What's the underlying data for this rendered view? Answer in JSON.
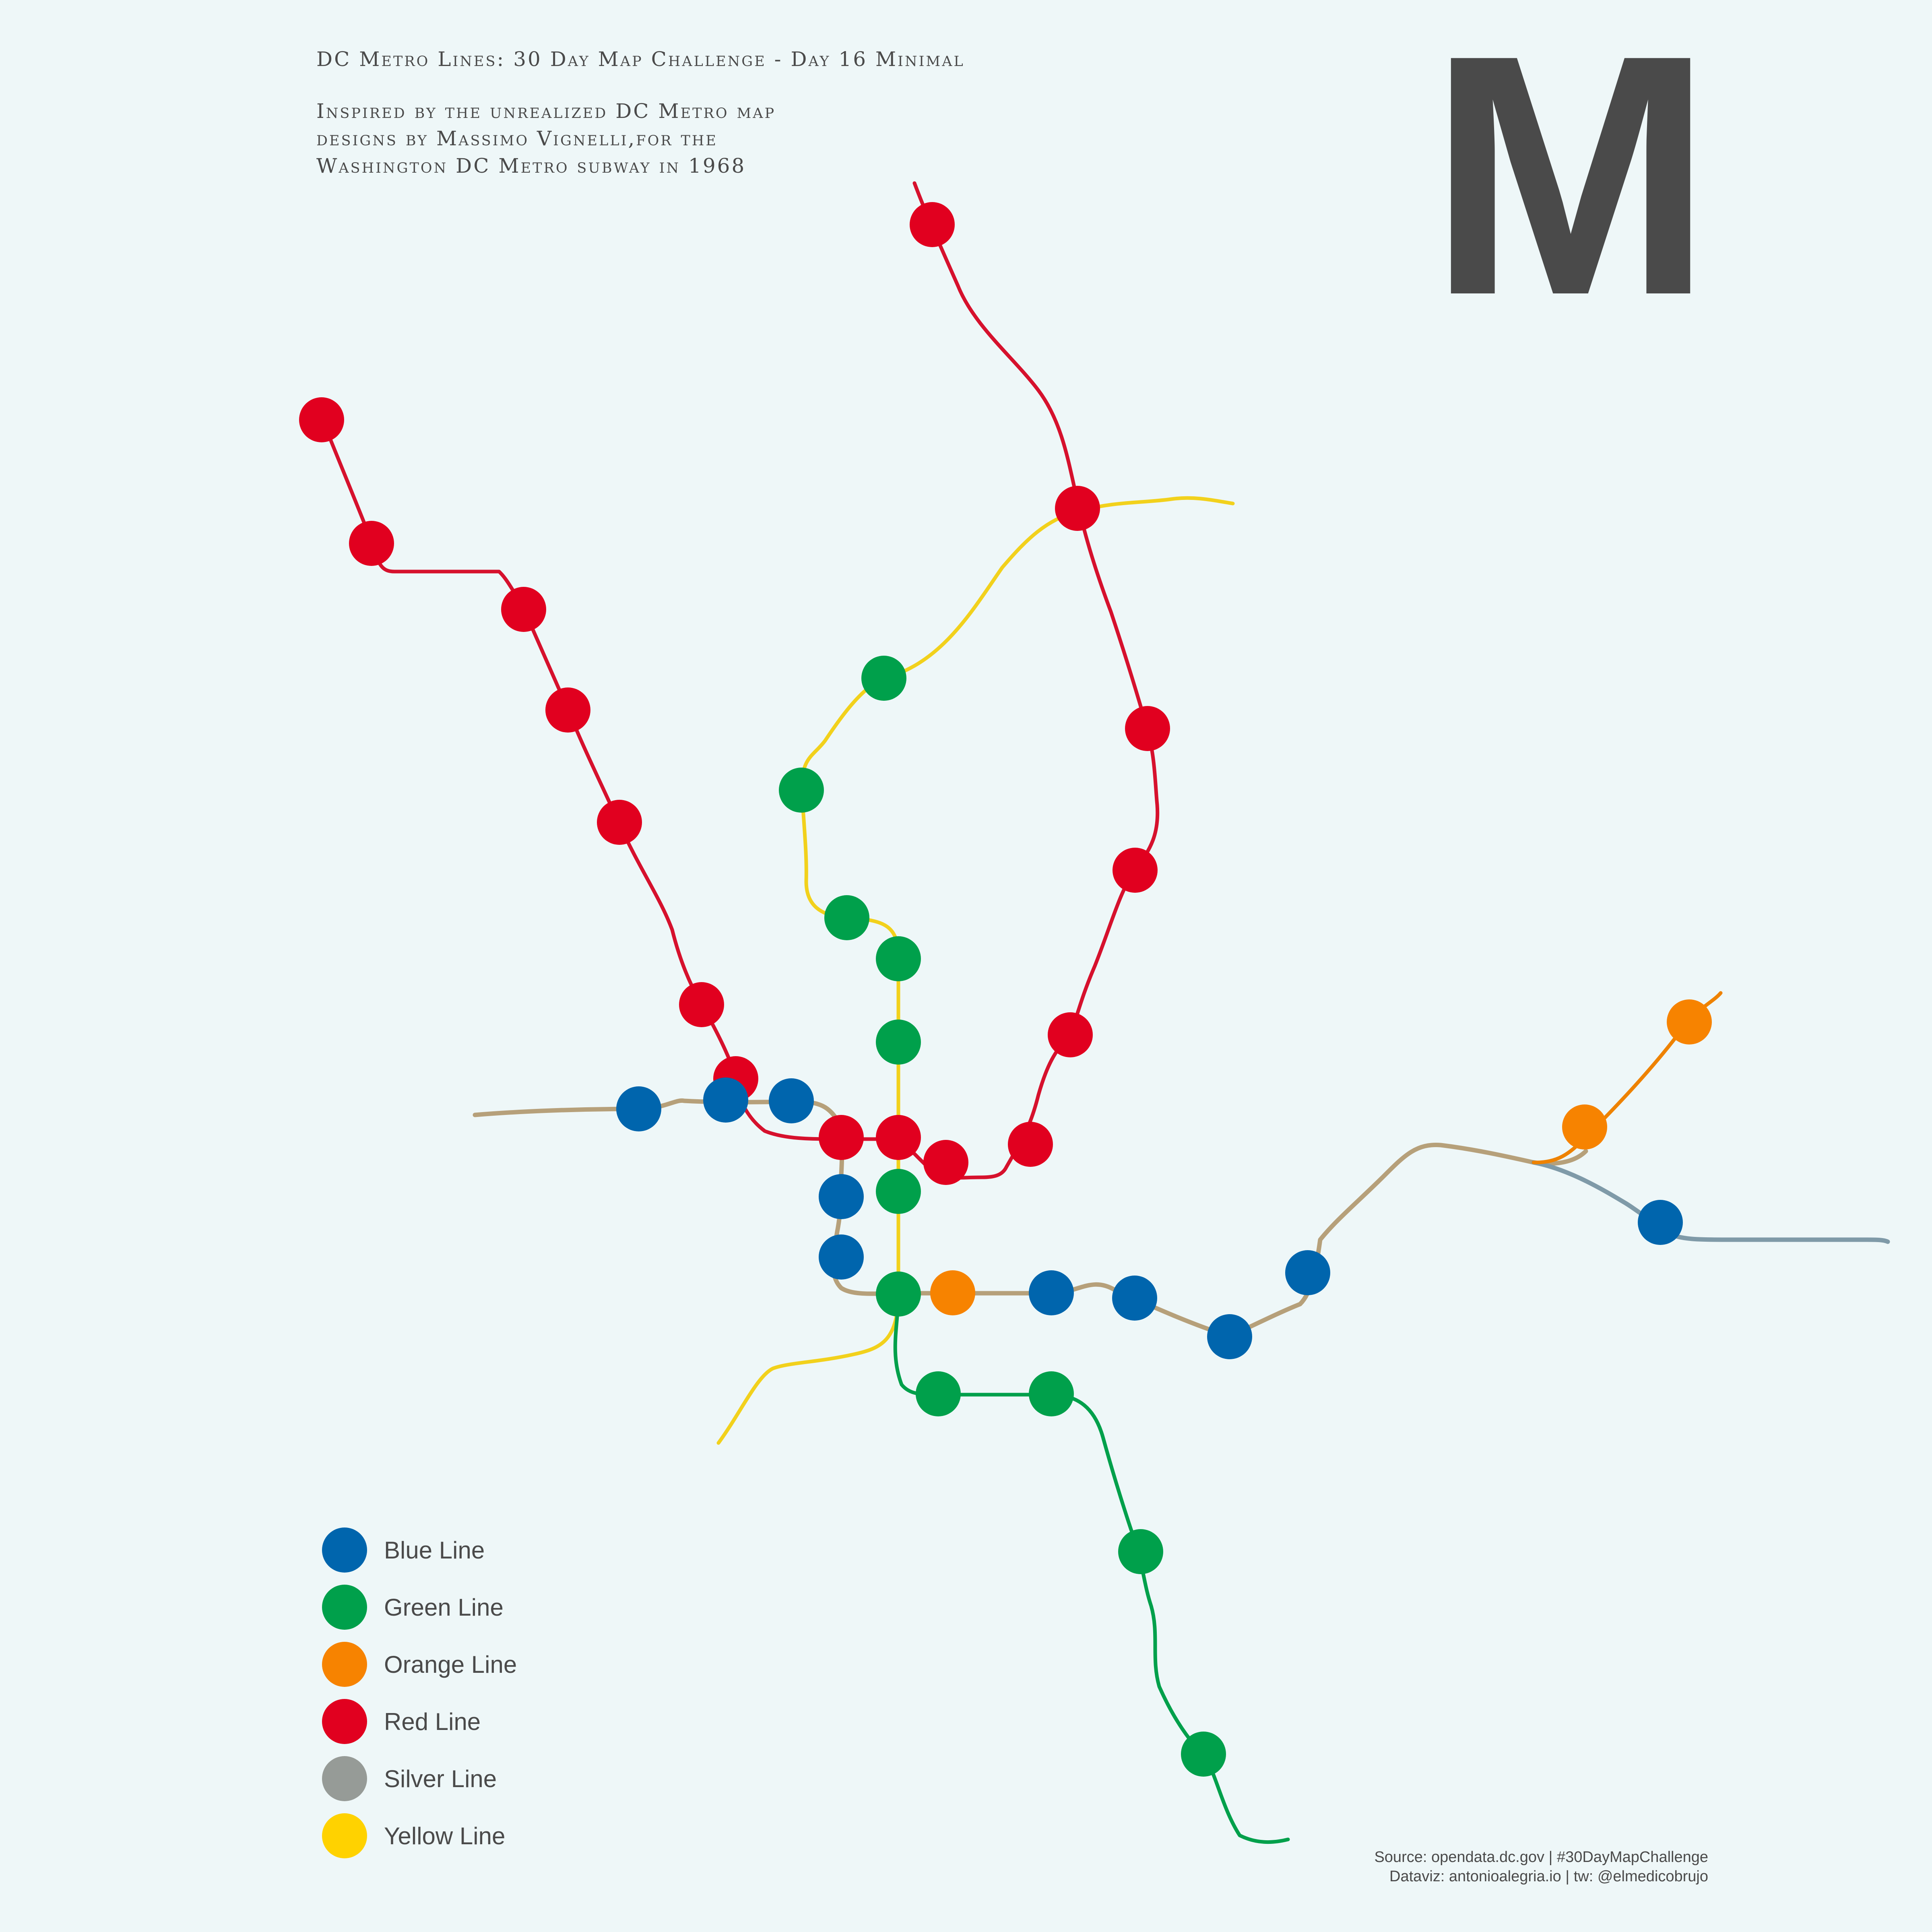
{
  "title": "DC Metro Lines: 30 Day Map Challenge - Day 16 Minimal",
  "subtitle_lines": [
    "Inspired by the unrealized DC Metro map",
    "designs by Massimo Vignelli,for the",
    "Washington DC Metro subway in 1968"
  ],
  "logo": "M",
  "legend": [
    {
      "label": "Blue Line",
      "color": "#0065ad"
    },
    {
      "label": "Green Line",
      "color": "#00a04b"
    },
    {
      "label": "Orange Line",
      "color": "#f78300"
    },
    {
      "label": "Red Line",
      "color": "#e1001f"
    },
    {
      "label": "Silver Line",
      "color": "#969b97"
    },
    {
      "label": "Yellow Line",
      "color": "#ffd200"
    }
  ],
  "credits": {
    "source": "Source: opendata.dc.gov | #30DayMapChallenge",
    "dataviz": "Dataviz: antonioalegria.io | tw: @elmedicobrujo"
  },
  "colors": {
    "background": "#eef7f8",
    "text": "#4a4a4a",
    "red": "#e1001f",
    "blue": "#0065ad",
    "green": "#00a04b",
    "orange": "#f78300",
    "silver": "#969b97",
    "yellow": "#ffd200",
    "yellow_track": "#f2d11c",
    "red_track": "#d6112d",
    "green_track": "#00a04b",
    "orange_track": "#ee8200",
    "shared_track": "#b6a07a",
    "silver_track": "#7f9aa8"
  }
}
